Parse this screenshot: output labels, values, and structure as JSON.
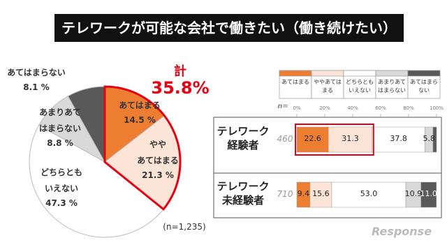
{
  "header": {
    "title": "テレワークが可能な会社で働きたい（働き続けたい）"
  },
  "logo": "Response",
  "chart_data": [
    {
      "type": "pie",
      "categories": [
        "あてはまる",
        "やや\nあてはまる",
        "どちらとも\nいえない",
        "あまりあて\nはまらない",
        "あてはまらない"
      ],
      "values": [
        14.5,
        21.3,
        47.3,
        8.8,
        8.1
      ],
      "value_labels": [
        "14.5 %",
        "21.3 %",
        "47.3 %",
        "8.8 %",
        "8.1 %"
      ],
      "colors": [
        "#ed7d31",
        "#fce4d6",
        "#ffffff",
        "#d9d9d9",
        "#595959"
      ],
      "annotations": [
        "計",
        "35.8%",
        "(n=1,235)"
      ]
    },
    {
      "type": "stacked-barh",
      "categories": [
        "テレワーク\n経験者",
        "テレワーク\n未経験者"
      ],
      "n_label": "n=",
      "n": [
        460,
        710
      ],
      "series": [
        {
          "name": "あてはまる",
          "color": "#ed7d31",
          "values": [
            22.6,
            9.4
          ],
          "value_labels": [
            "22.6",
            "9.4"
          ]
        },
        {
          "name": "ややあてはまる",
          "color": "#fce4d6",
          "values": [
            31.3,
            15.6
          ],
          "value_labels": [
            "31.3",
            "15.6"
          ]
        },
        {
          "name": "どちらともいえない",
          "color": "#ffffff",
          "values": [
            37.8,
            53.0
          ],
          "value_labels": [
            "37.8",
            "53.0"
          ]
        },
        {
          "name": "あまりあてはまらない",
          "color": "#d9d9d9",
          "values": [
            5.8,
            10.9
          ],
          "value_labels": [
            "5.8",
            "10.9"
          ]
        },
        {
          "name": "あてはまらない",
          "color": "#595959",
          "values": [
            2.5,
            11.0
          ],
          "value_labels": [
            null,
            "11.0"
          ]
        }
      ],
      "xlim": [
        0,
        100
      ],
      "xticks": [
        {
          "value": 0,
          "label": "0%"
        },
        {
          "value": 20,
          "label": "20%"
        },
        {
          "value": 40,
          "label": "40%"
        },
        {
          "value": 60,
          "label": "60%"
        },
        {
          "value": 80,
          "label": "80%"
        },
        {
          "value": 100,
          "label": "100%"
        }
      ]
    }
  ]
}
